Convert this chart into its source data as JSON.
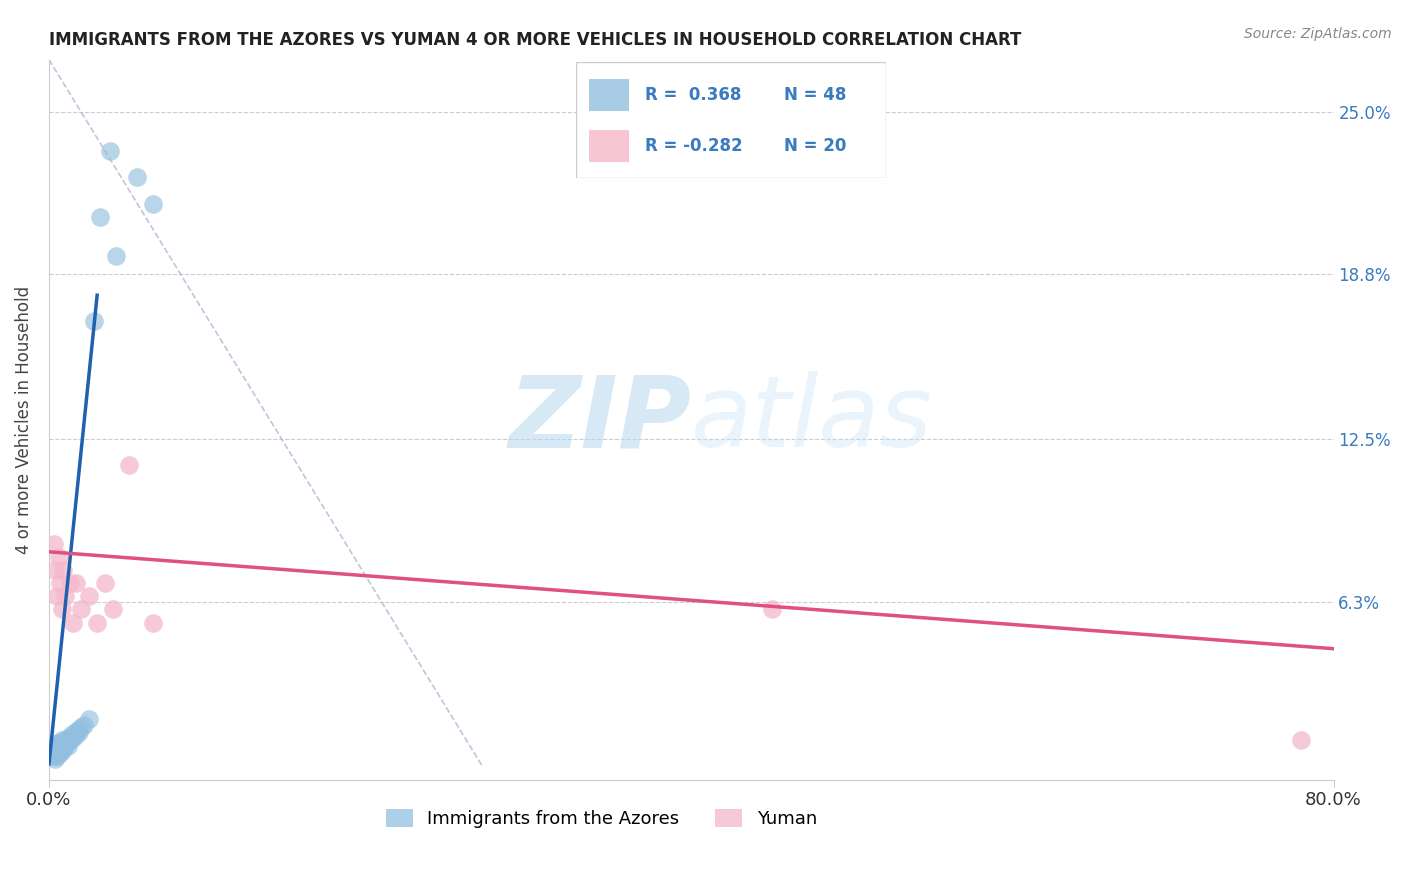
{
  "title": "IMMIGRANTS FROM THE AZORES VS YUMAN 4 OR MORE VEHICLES IN HOUSEHOLD CORRELATION CHART",
  "source_text": "Source: ZipAtlas.com",
  "ylabel": "4 or more Vehicles in Household",
  "xmin": 0.0,
  "xmax": 0.8,
  "ymin": -0.005,
  "ymax": 0.27,
  "yticks": [
    0.0,
    0.063,
    0.125,
    0.188,
    0.25
  ],
  "ytick_labels": [
    "",
    "",
    "",
    "",
    ""
  ],
  "xtick_labels": [
    "0.0%",
    "80.0%"
  ],
  "xticks": [
    0.0,
    0.8
  ],
  "right_ytick_labels": [
    "25.0%",
    "18.8%",
    "12.5%",
    "6.3%",
    ""
  ],
  "right_yticks": [
    0.25,
    0.188,
    0.125,
    0.063,
    0.0
  ],
  "blue_color": "#92bfe0",
  "pink_color": "#f4b8cb",
  "blue_line_color": "#2060b0",
  "pink_line_color": "#e05080",
  "watermark_zip": "ZIP",
  "watermark_atlas": "atlas",
  "blue_scatter_x": [
    0.001,
    0.001,
    0.002,
    0.002,
    0.002,
    0.003,
    0.003,
    0.003,
    0.004,
    0.004,
    0.004,
    0.004,
    0.005,
    0.005,
    0.005,
    0.005,
    0.006,
    0.006,
    0.006,
    0.007,
    0.007,
    0.007,
    0.008,
    0.008,
    0.008,
    0.009,
    0.009,
    0.01,
    0.01,
    0.011,
    0.012,
    0.012,
    0.013,
    0.014,
    0.015,
    0.016,
    0.017,
    0.018,
    0.019,
    0.02,
    0.022,
    0.025,
    0.028,
    0.032,
    0.038,
    0.042,
    0.055,
    0.065
  ],
  "blue_scatter_y": [
    0.005,
    0.008,
    0.004,
    0.006,
    0.007,
    0.004,
    0.005,
    0.006,
    0.003,
    0.005,
    0.006,
    0.008,
    0.004,
    0.006,
    0.007,
    0.009,
    0.005,
    0.007,
    0.008,
    0.005,
    0.007,
    0.009,
    0.006,
    0.008,
    0.01,
    0.007,
    0.009,
    0.008,
    0.01,
    0.009,
    0.008,
    0.011,
    0.01,
    0.012,
    0.011,
    0.013,
    0.012,
    0.014,
    0.013,
    0.015,
    0.016,
    0.018,
    0.17,
    0.21,
    0.235,
    0.195,
    0.225,
    0.215
  ],
  "pink_scatter_x": [
    0.003,
    0.004,
    0.005,
    0.006,
    0.007,
    0.008,
    0.009,
    0.01,
    0.013,
    0.015,
    0.017,
    0.02,
    0.025,
    0.03,
    0.035,
    0.04,
    0.05,
    0.065,
    0.45,
    0.78
  ],
  "pink_scatter_y": [
    0.085,
    0.075,
    0.065,
    0.08,
    0.07,
    0.06,
    0.075,
    0.065,
    0.07,
    0.055,
    0.07,
    0.06,
    0.065,
    0.055,
    0.07,
    0.06,
    0.115,
    0.055,
    0.06,
    0.01
  ],
  "blue_trend_x": [
    0.0,
    0.03
  ],
  "blue_trend_y": [
    0.001,
    0.18
  ],
  "pink_trend_x": [
    0.0,
    0.8
  ],
  "pink_trend_y": [
    0.082,
    0.045
  ],
  "dashed_line_x": [
    0.0,
    0.27
  ],
  "dashed_line_y": [
    0.27,
    0.0
  ]
}
